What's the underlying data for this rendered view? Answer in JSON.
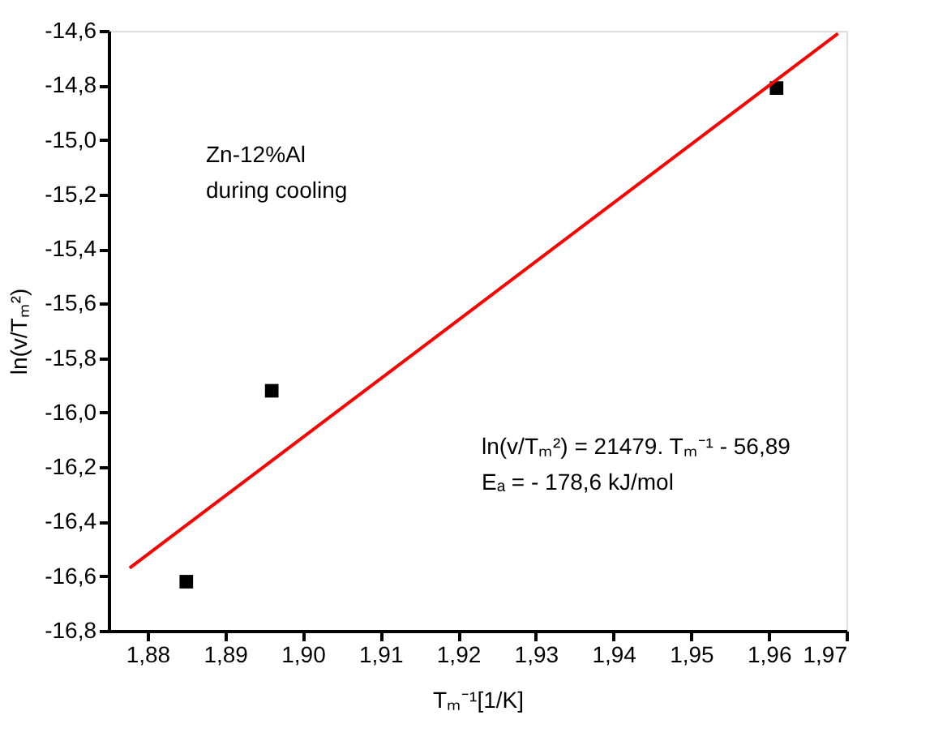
{
  "chart_data": {
    "type": "scatter",
    "xlabel": "Tₘ⁻¹[1/K]",
    "ylabel": "ln(v/Tₘ²)",
    "annotations": [
      "Zn-12%Al\nduring cooling",
      "ln(v/Tₘ²) = 21479. Tₘ⁻¹ - 56,89\nEₐ = - 178,6 kJ/mol"
    ],
    "series": [
      {
        "color": "#000000",
        "marker": "square",
        "x": [
          1.885,
          1.896,
          1.961
        ],
        "values": [
          -16.62,
          -15.92,
          -14.81
        ]
      },
      {
        "type": "line",
        "color": "#ff0000",
        "line_style": "solid",
        "x": [
          1.8777,
          1.9689
        ],
        "values": [
          -16.57,
          -14.61
        ]
      }
    ],
    "xlim": [
      1.875,
      1.97
    ],
    "ylim": [
      -16.8,
      -14.6
    ],
    "xticks": [
      {
        "value": 1.88,
        "label": "1,88"
      },
      {
        "value": 1.89,
        "label": "1,89"
      },
      {
        "value": 1.9,
        "label": "1,90"
      },
      {
        "value": 1.91,
        "label": "1,91"
      },
      {
        "value": 1.92,
        "label": "1,92"
      },
      {
        "value": 1.93,
        "label": "1,93"
      },
      {
        "value": 1.94,
        "label": "1,94"
      },
      {
        "value": 1.95,
        "label": "1,95"
      },
      {
        "value": 1.96,
        "label": "1,96"
      },
      {
        "value": 1.97,
        "label": "1,97"
      }
    ],
    "yticks": [
      {
        "value": -16.8,
        "label": "-16,8"
      },
      {
        "value": -16.6,
        "label": "-16,6"
      },
      {
        "value": -16.4,
        "label": "-16,4"
      },
      {
        "value": -16.2,
        "label": "-16,2"
      },
      {
        "value": -16.0,
        "label": "-16,0"
      },
      {
        "value": -15.8,
        "label": "-15,8"
      },
      {
        "value": -15.6,
        "label": "-15,6"
      },
      {
        "value": -15.4,
        "label": "-15,4"
      },
      {
        "value": -15.2,
        "label": "-15,2"
      },
      {
        "value": -15.0,
        "label": "-15,0"
      },
      {
        "value": -14.8,
        "label": "-14,8"
      },
      {
        "value": -14.6,
        "label": "-14,6"
      }
    ],
    "grid": false
  }
}
